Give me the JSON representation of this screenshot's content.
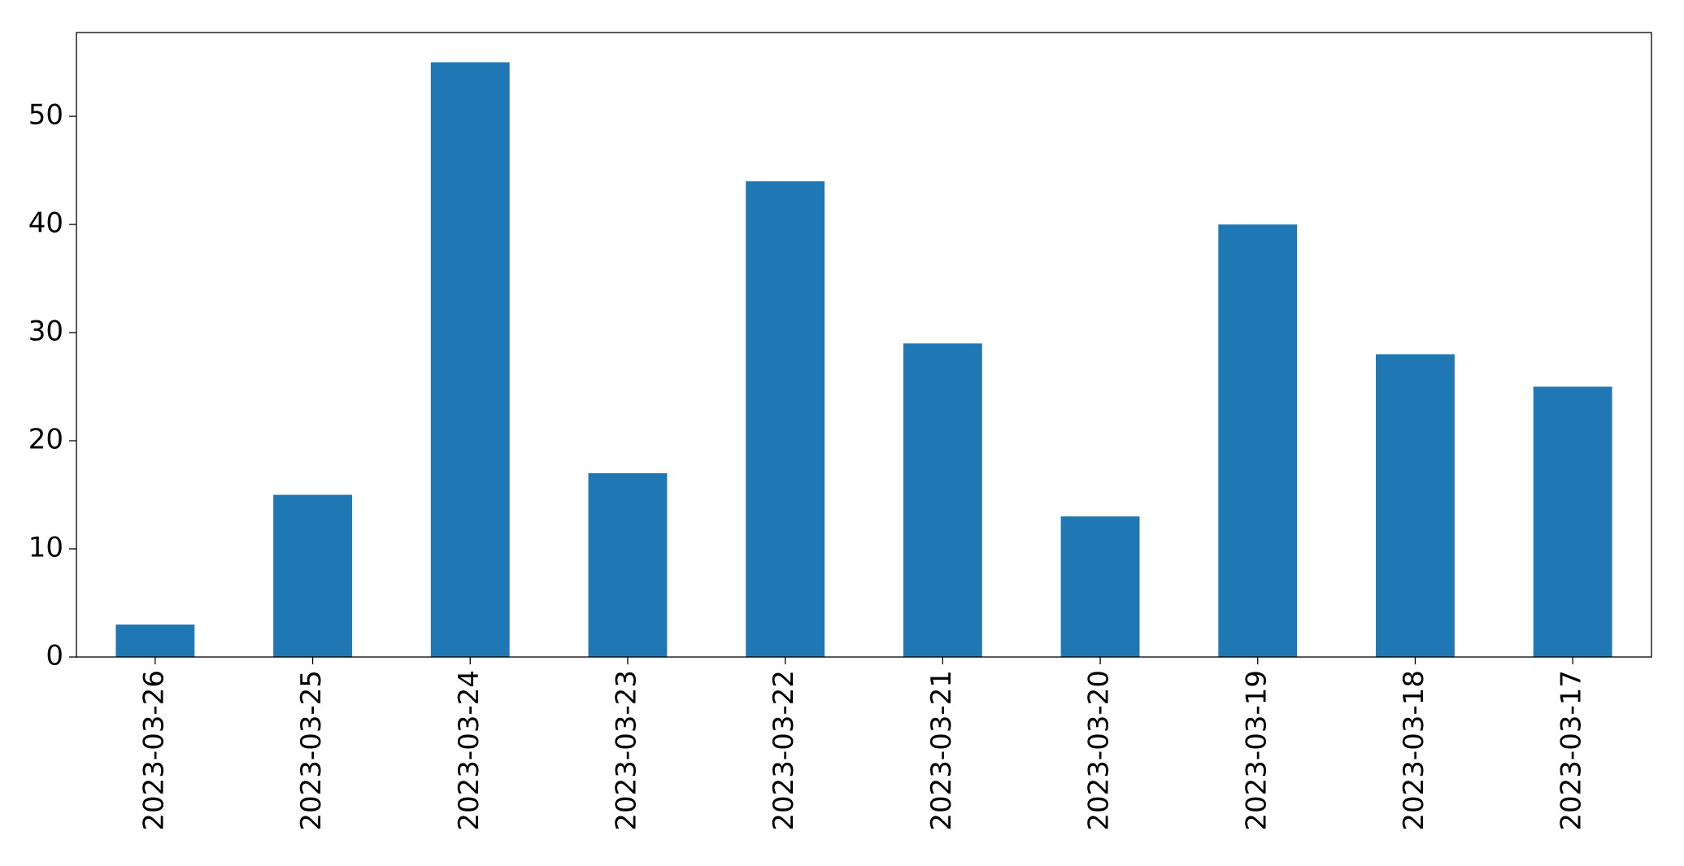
{
  "chart_data": {
    "type": "bar",
    "categories": [
      "2023-03-26",
      "2023-03-25",
      "2023-03-24",
      "2023-03-23",
      "2023-03-22",
      "2023-03-21",
      "2023-03-20",
      "2023-03-19",
      "2023-03-18",
      "2023-03-17"
    ],
    "values": [
      3,
      15,
      55,
      17,
      44,
      29,
      13,
      40,
      28,
      25
    ],
    "color": "#1f77b4",
    "ylim": [
      0,
      57.75
    ],
    "yticks": [
      0,
      10,
      20,
      30,
      40,
      50
    ],
    "grid": false
  }
}
